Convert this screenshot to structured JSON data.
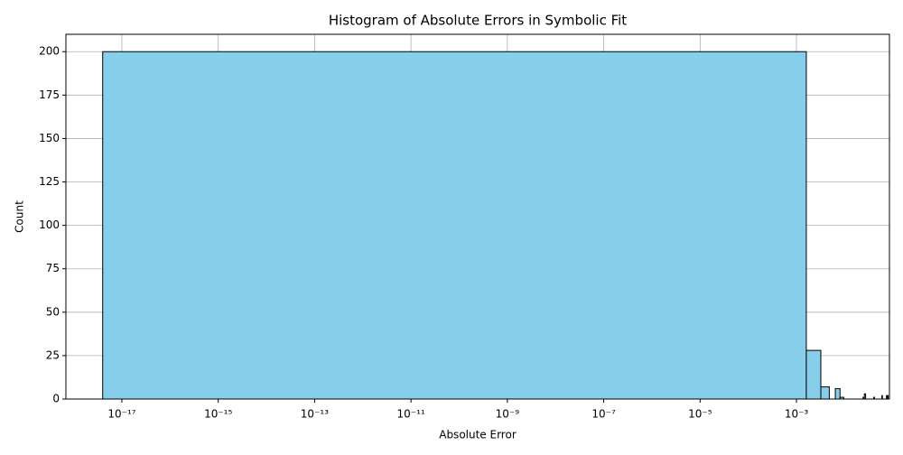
{
  "chart_data": {
    "type": "histogram",
    "title": "Histogram of Absolute Errors in Symbolic Fit",
    "xlabel": "Absolute Error",
    "ylabel": "Count",
    "xscale": "log",
    "grid": true,
    "color": "#87ceeb",
    "edgecolor": "#000000",
    "bins": [
      4e-18,
      0.0016,
      0.0032,
      0.0048,
      0.0064,
      0.008,
      0.0096,
      0.0112,
      0.0128,
      0.0144,
      0.016,
      0.0176,
      0.0192,
      0.0208,
      0.0224,
      0.024,
      0.0256,
      0.0272,
      0.0288,
      0.0304,
      0.032,
      0.0336,
      0.0352,
      0.0368,
      0.0384,
      0.04,
      0.0416,
      0.0432,
      0.0448,
      0.0464,
      0.048,
      0.0496,
      0.0512,
      0.0528,
      0.0544,
      0.056,
      0.0576,
      0.0592,
      0.0608,
      0.0624,
      0.064,
      0.0656,
      0.0672,
      0.0688,
      0.0704,
      0.072,
      0.0736,
      0.0752,
      0.0768,
      0.0784,
      0.08
    ],
    "values": [
      200,
      28,
      7,
      0,
      6,
      1,
      0,
      0,
      0,
      0,
      0,
      0,
      0,
      0,
      0,
      1,
      3,
      0,
      0,
      0,
      0,
      0,
      0,
      0,
      0,
      1,
      0,
      0,
      0,
      0,
      0,
      0,
      0,
      0,
      0,
      0,
      0,
      2,
      0,
      0,
      0,
      0,
      0,
      0,
      0,
      0,
      2,
      0,
      0,
      2
    ],
    "xlim": [
      6.9e-19,
      0.085
    ],
    "xticks": [
      {
        "value": 1e-17,
        "label": "10⁻¹⁷"
      },
      {
        "value": 1e-15,
        "label": "10⁻¹⁵"
      },
      {
        "value": 1e-13,
        "label": "10⁻¹³"
      },
      {
        "value": 1e-11,
        "label": "10⁻¹¹"
      },
      {
        "value": 1e-09,
        "label": "10⁻⁹"
      },
      {
        "value": 1e-07,
        "label": "10⁻⁷"
      },
      {
        "value": 1e-05,
        "label": "10⁻⁵"
      },
      {
        "value": 0.001,
        "label": "10⁻³"
      }
    ],
    "ylim": [
      0,
      210
    ],
    "yticks": [
      0,
      25,
      50,
      75,
      100,
      125,
      150,
      175,
      200
    ]
  }
}
